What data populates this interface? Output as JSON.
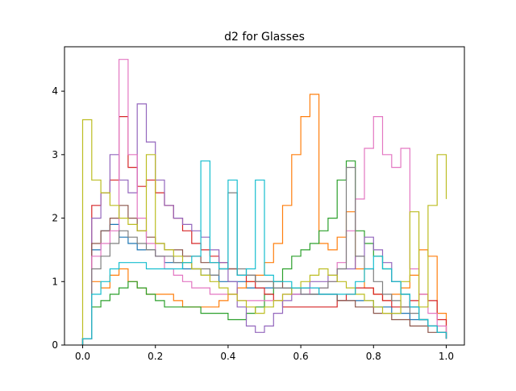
{
  "chart_data": {
    "type": "line",
    "step": true,
    "title": "d2 for Glasses",
    "xlabel": "",
    "ylabel": "",
    "xlim": [
      -0.05,
      1.05
    ],
    "ylim": [
      0,
      4.7
    ],
    "xticks": [
      0.0,
      0.2,
      0.4,
      0.6,
      0.8,
      1.0
    ],
    "xtick_labels": [
      "0.0",
      "0.2",
      "0.4",
      "0.6",
      "0.8",
      "1.0"
    ],
    "yticks": [
      0,
      1,
      2,
      3,
      4
    ],
    "ytick_labels": [
      "0",
      "1",
      "2",
      "3",
      "4"
    ],
    "grid": false,
    "legend": "none",
    "series_x": [
      0.0,
      0.025,
      0.05,
      0.075,
      0.1,
      0.125,
      0.15,
      0.175,
      0.2,
      0.225,
      0.25,
      0.275,
      0.3,
      0.325,
      0.35,
      0.375,
      0.4,
      0.425,
      0.45,
      0.475,
      0.5,
      0.525,
      0.55,
      0.575,
      0.6,
      0.625,
      0.65,
      0.675,
      0.7,
      0.725,
      0.75,
      0.775,
      0.8,
      0.825,
      0.85,
      0.875,
      0.9,
      0.925,
      0.95,
      0.975,
      1.0
    ],
    "series": [
      {
        "color": "#1f77b4",
        "values": [
          0.1,
          1.5,
          1.8,
          1.9,
          1.7,
          1.6,
          1.5,
          1.5,
          1.4,
          1.3,
          1.3,
          1.2,
          1.2,
          1.1,
          1.1,
          1.0,
          1.0,
          1.0,
          0.9,
          0.9,
          0.9,
          0.9,
          0.9,
          0.8,
          0.8,
          0.8,
          0.8,
          0.8,
          0.7,
          0.7,
          0.7,
          0.7,
          0.6,
          0.6,
          0.5,
          0.5,
          0.4,
          0.4,
          0.3,
          0.2,
          0.1
        ]
      },
      {
        "color": "#ff7f0e",
        "values": [
          0.1,
          1.0,
          0.9,
          1.1,
          1.2,
          1.0,
          0.9,
          0.8,
          0.8,
          0.8,
          0.7,
          0.6,
          0.6,
          0.6,
          0.6,
          0.7,
          0.8,
          0.9,
          1.0,
          1.1,
          1.3,
          1.6,
          2.2,
          3.0,
          3.6,
          3.95,
          1.6,
          1.5,
          1.7,
          2.1,
          1.2,
          0.9,
          0.8,
          0.7,
          0.8,
          0.9,
          1.1,
          1.5,
          1.4,
          0.5,
          0.1
        ]
      },
      {
        "color": "#2ca02c",
        "values": [
          0.1,
          0.6,
          0.7,
          0.8,
          0.9,
          1.0,
          0.9,
          0.8,
          0.7,
          0.6,
          0.6,
          0.6,
          0.6,
          0.5,
          0.5,
          0.5,
          0.4,
          0.4,
          0.5,
          0.6,
          0.8,
          1.0,
          1.2,
          1.4,
          1.5,
          1.6,
          1.8,
          2.0,
          2.6,
          2.9,
          1.8,
          1.6,
          1.4,
          1.2,
          1.0,
          0.8,
          0.6,
          0.4,
          0.3,
          0.2,
          0.1
        ]
      },
      {
        "color": "#d62728",
        "values": [
          0.1,
          2.2,
          2.4,
          2.6,
          3.6,
          2.8,
          2.5,
          2.6,
          2.4,
          2.2,
          2.0,
          1.8,
          1.6,
          1.5,
          1.4,
          1.3,
          1.2,
          1.1,
          1.0,
          0.9,
          0.8,
          0.7,
          0.6,
          0.6,
          0.6,
          0.6,
          0.6,
          0.6,
          0.7,
          0.8,
          0.9,
          0.9,
          0.8,
          0.7,
          0.6,
          0.6,
          0.7,
          0.8,
          0.7,
          0.4,
          0.1
        ]
      },
      {
        "color": "#9467bd",
        "values": [
          0.1,
          2.0,
          2.4,
          3.0,
          2.6,
          2.4,
          3.8,
          3.2,
          2.6,
          2.2,
          2.0,
          1.9,
          1.8,
          1.7,
          1.5,
          1.3,
          1.0,
          0.6,
          0.3,
          0.2,
          0.3,
          0.5,
          0.7,
          0.8,
          0.9,
          1.0,
          1.0,
          1.1,
          1.2,
          1.2,
          1.4,
          1.7,
          1.5,
          1.3,
          1.0,
          0.8,
          0.6,
          0.4,
          0.3,
          0.2,
          0.1
        ]
      },
      {
        "color": "#8c564b",
        "values": [
          0.1,
          1.6,
          1.8,
          2.0,
          2.2,
          2.0,
          1.8,
          1.7,
          1.6,
          1.5,
          1.5,
          1.4,
          1.4,
          1.3,
          1.3,
          1.2,
          1.2,
          1.1,
          1.1,
          1.0,
          1.0,
          1.0,
          0.9,
          0.9,
          0.9,
          0.8,
          0.8,
          0.8,
          0.7,
          0.7,
          0.6,
          0.6,
          0.5,
          0.5,
          0.4,
          0.4,
          0.3,
          0.3,
          0.2,
          0.2,
          0.1
        ]
      },
      {
        "color": "#e377c2",
        "values": [
          0.1,
          1.4,
          1.6,
          1.8,
          4.5,
          3.0,
          2.0,
          1.6,
          1.4,
          1.2,
          1.1,
          1.0,
          0.9,
          0.9,
          0.8,
          0.8,
          0.8,
          0.7,
          0.7,
          0.7,
          0.7,
          0.7,
          0.8,
          0.8,
          0.8,
          0.9,
          0.9,
          1.0,
          1.3,
          1.8,
          2.3,
          3.1,
          3.6,
          3.0,
          2.8,
          3.1,
          1.2,
          0.8,
          0.5,
          0.3,
          0.1
        ]
      },
      {
        "color": "#7f7f7f",
        "values": [
          0.1,
          1.2,
          1.4,
          1.6,
          1.8,
          1.7,
          1.6,
          1.5,
          1.4,
          1.4,
          1.3,
          1.3,
          1.2,
          1.2,
          1.1,
          1.2,
          2.4,
          1.2,
          1.1,
          1.0,
          1.0,
          0.9,
          0.9,
          0.9,
          0.8,
          0.8,
          0.9,
          1.0,
          1.2,
          2.8,
          1.4,
          1.2,
          1.0,
          0.8,
          0.7,
          0.6,
          0.5,
          0.4,
          0.3,
          0.2,
          0.1
        ]
      },
      {
        "color": "#bcbd22",
        "values": [
          3.55,
          2.6,
          2.4,
          2.2,
          2.0,
          1.9,
          1.8,
          3.0,
          1.6,
          1.5,
          1.4,
          1.3,
          1.2,
          1.1,
          1.0,
          0.9,
          0.8,
          0.7,
          0.6,
          0.5,
          0.6,
          0.7,
          0.8,
          0.9,
          1.0,
          1.1,
          1.2,
          1.1,
          1.0,
          0.9,
          0.8,
          0.7,
          0.6,
          0.5,
          0.5,
          1.0,
          2.1,
          0.6,
          2.2,
          3.0,
          2.3
        ]
      },
      {
        "color": "#17becf",
        "values": [
          0.1,
          0.8,
          1.0,
          1.2,
          1.3,
          1.3,
          1.3,
          1.2,
          1.2,
          1.2,
          1.2,
          1.3,
          1.4,
          2.9,
          1.3,
          1.2,
          2.6,
          1.1,
          1.2,
          2.6,
          1.1,
          1.0,
          1.0,
          0.9,
          0.9,
          0.9,
          0.8,
          0.8,
          0.8,
          0.8,
          1.0,
          1.2,
          1.4,
          1.2,
          1.0,
          0.8,
          0.6,
          0.4,
          0.3,
          0.2,
          0.1
        ]
      }
    ]
  }
}
